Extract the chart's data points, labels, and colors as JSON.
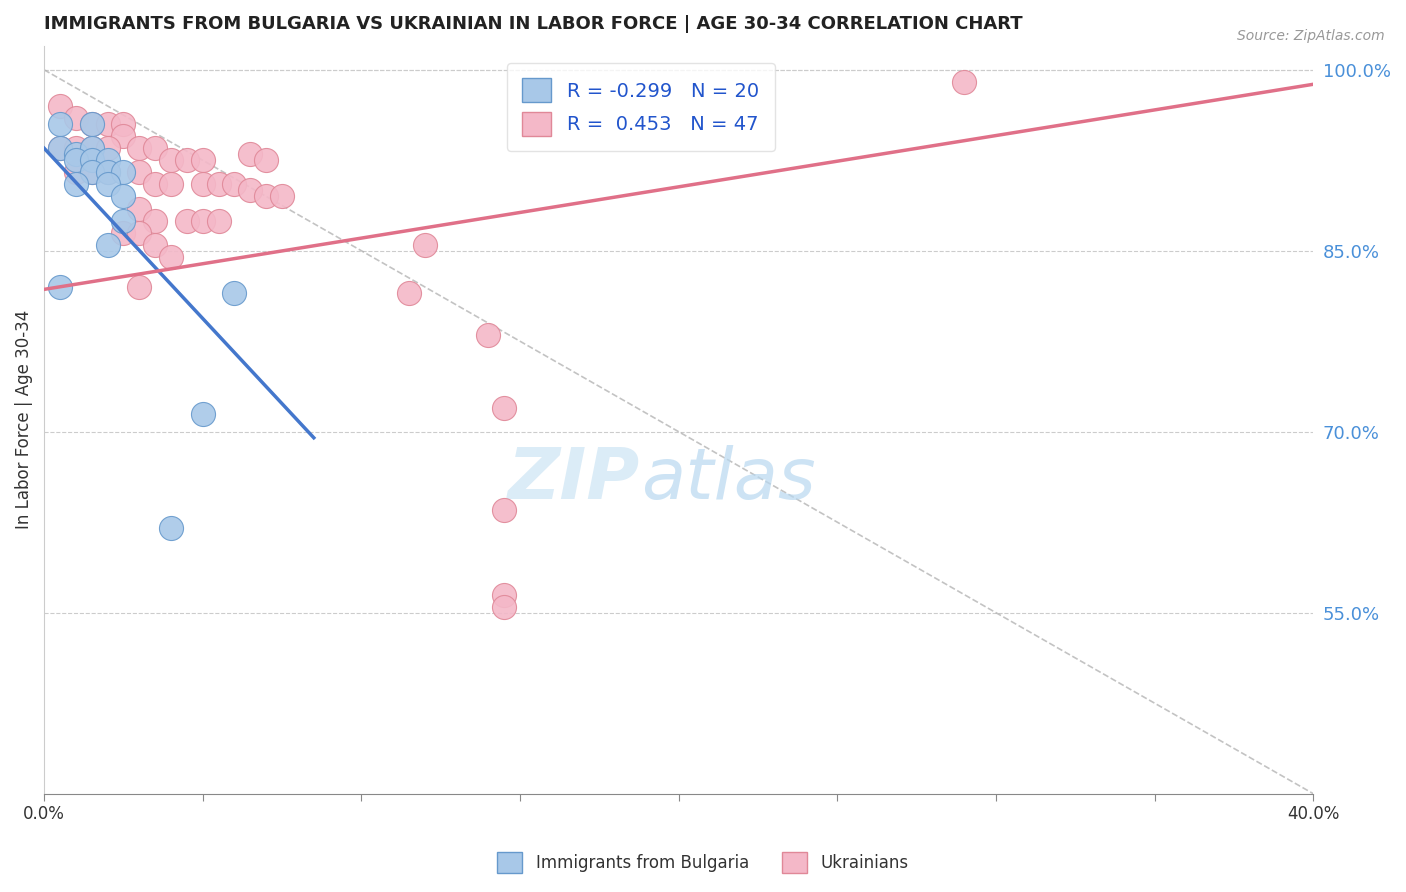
{
  "title": "IMMIGRANTS FROM BULGARIA VS UKRAINIAN IN LABOR FORCE | AGE 30-34 CORRELATION CHART",
  "source": "Source: ZipAtlas.com",
  "ylabel": "In Labor Force | Age 30-34",
  "xlim": [
    0.0,
    0.4
  ],
  "ylim": [
    0.4,
    1.02
  ],
  "xticks": [
    0.0,
    0.05,
    0.1,
    0.15,
    0.2,
    0.25,
    0.3,
    0.35,
    0.4
  ],
  "xtick_labels_left": "0.0%",
  "xtick_labels_right": "40.0%",
  "yticks_right": [
    0.55,
    0.7,
    0.85,
    1.0
  ],
  "ytick_labels_right": [
    "55.0%",
    "70.0%",
    "85.0%",
    "100.0%"
  ],
  "bulgaria_color": "#a8c8e8",
  "ukraine_color": "#f4b8c8",
  "bulgaria_edge": "#6699cc",
  "ukraine_edge": "#e08898",
  "trend_blue": "#4477cc",
  "trend_pink": "#e07088",
  "R_bulgaria": -0.299,
  "N_bulgaria": 20,
  "R_ukraine": 0.453,
  "N_ukraine": 47,
  "legend_labels": [
    "Immigrants from Bulgaria",
    "Ukrainians"
  ],
  "watermark_color": "#cce4f4",
  "grid_color": "#cccccc",
  "bulgaria_points": [
    [
      0.005,
      0.955
    ],
    [
      0.015,
      0.955
    ],
    [
      0.005,
      0.935
    ],
    [
      0.01,
      0.93
    ],
    [
      0.015,
      0.935
    ],
    [
      0.01,
      0.925
    ],
    [
      0.015,
      0.925
    ],
    [
      0.02,
      0.925
    ],
    [
      0.015,
      0.915
    ],
    [
      0.02,
      0.915
    ],
    [
      0.025,
      0.915
    ],
    [
      0.01,
      0.905
    ],
    [
      0.02,
      0.905
    ],
    [
      0.025,
      0.895
    ],
    [
      0.025,
      0.875
    ],
    [
      0.02,
      0.855
    ],
    [
      0.005,
      0.82
    ],
    [
      0.06,
      0.815
    ],
    [
      0.05,
      0.715
    ],
    [
      0.04,
      0.62
    ]
  ],
  "ukraine_points": [
    [
      0.005,
      0.97
    ],
    [
      0.01,
      0.96
    ],
    [
      0.015,
      0.955
    ],
    [
      0.02,
      0.955
    ],
    [
      0.025,
      0.955
    ],
    [
      0.025,
      0.945
    ],
    [
      0.005,
      0.935
    ],
    [
      0.01,
      0.935
    ],
    [
      0.015,
      0.935
    ],
    [
      0.02,
      0.935
    ],
    [
      0.03,
      0.935
    ],
    [
      0.035,
      0.935
    ],
    [
      0.065,
      0.93
    ],
    [
      0.07,
      0.925
    ],
    [
      0.04,
      0.925
    ],
    [
      0.045,
      0.925
    ],
    [
      0.05,
      0.925
    ],
    [
      0.01,
      0.915
    ],
    [
      0.015,
      0.915
    ],
    [
      0.02,
      0.915
    ],
    [
      0.03,
      0.915
    ],
    [
      0.035,
      0.905
    ],
    [
      0.04,
      0.905
    ],
    [
      0.05,
      0.905
    ],
    [
      0.055,
      0.905
    ],
    [
      0.06,
      0.905
    ],
    [
      0.065,
      0.9
    ],
    [
      0.07,
      0.895
    ],
    [
      0.075,
      0.895
    ],
    [
      0.03,
      0.885
    ],
    [
      0.035,
      0.875
    ],
    [
      0.045,
      0.875
    ],
    [
      0.05,
      0.875
    ],
    [
      0.055,
      0.875
    ],
    [
      0.025,
      0.865
    ],
    [
      0.03,
      0.865
    ],
    [
      0.035,
      0.855
    ],
    [
      0.04,
      0.845
    ],
    [
      0.03,
      0.82
    ],
    [
      0.12,
      0.855
    ],
    [
      0.115,
      0.815
    ],
    [
      0.14,
      0.78
    ],
    [
      0.145,
      0.72
    ],
    [
      0.145,
      0.635
    ],
    [
      0.145,
      0.565
    ],
    [
      0.145,
      0.555
    ],
    [
      0.29,
      0.99
    ]
  ]
}
